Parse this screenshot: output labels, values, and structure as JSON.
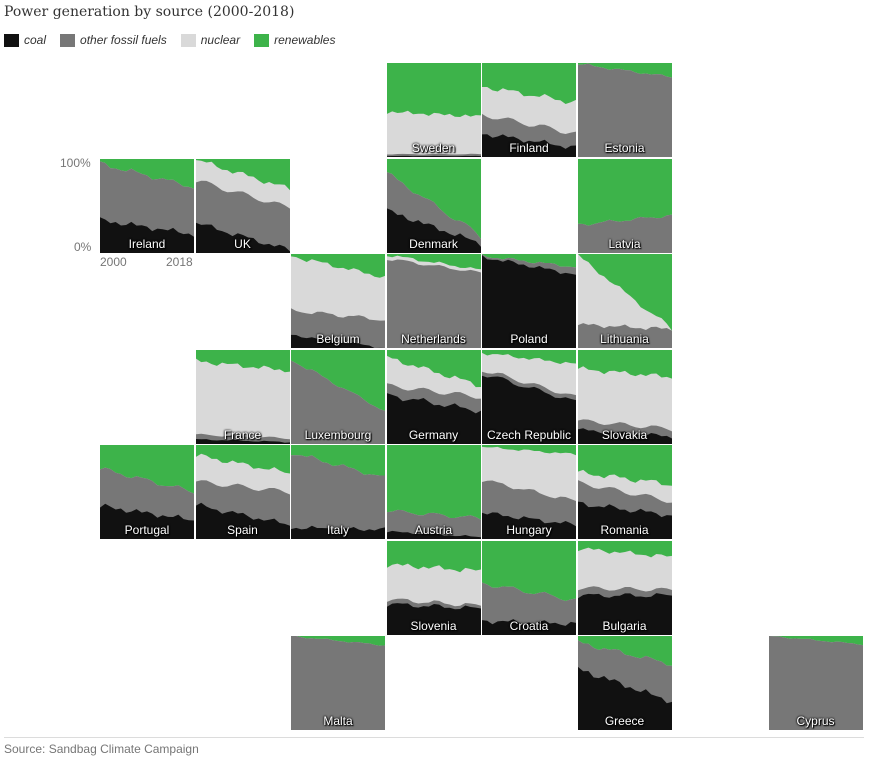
{
  "title": "Power generation by source (2000-2018)",
  "source": "Source: Sandbag Climate Campaign",
  "legend": [
    {
      "key": "coal",
      "label": "coal",
      "color": "#111111"
    },
    {
      "key": "other",
      "label": "other fossil fuels",
      "color": "#777777"
    },
    {
      "key": "nuclear",
      "label": "nuclear",
      "color": "#d9d9d9"
    },
    {
      "key": "renewables",
      "label": "renewables",
      "color": "#3db34a"
    }
  ],
  "axis": {
    "y_top": "100%",
    "y_bottom": "0%",
    "x_start": "2000",
    "x_end": "2018"
  },
  "chart_data": {
    "type": "area",
    "stacked": true,
    "layout": "tile grid map",
    "x": [
      2000,
      2018
    ],
    "ylim": [
      0,
      100
    ],
    "unit": "% of power generation",
    "series_order": [
      "coal",
      "other fossil fuels",
      "nuclear",
      "renewables"
    ],
    "countries": [
      {
        "name": "Sweden",
        "col": 3,
        "row": 0,
        "coal": [
          1,
          1
        ],
        "other": [
          2,
          2
        ],
        "nuclear": [
          45,
          40
        ],
        "renewables": [
          52,
          57
        ]
      },
      {
        "name": "Finland",
        "col": 4,
        "row": 0,
        "coal": [
          25,
          10
        ],
        "other": [
          20,
          15
        ],
        "nuclear": [
          30,
          33
        ],
        "renewables": [
          25,
          42
        ]
      },
      {
        "name": "Estonia",
        "col": 5,
        "row": 0,
        "coal": [
          0,
          0
        ],
        "other": [
          99,
          85
        ],
        "nuclear": [
          0,
          0
        ],
        "renewables": [
          1,
          15
        ]
      },
      {
        "name": "Ireland",
        "col": 0,
        "row": 1,
        "coal": [
          35,
          20
        ],
        "other": [
          60,
          50
        ],
        "nuclear": [
          0,
          0
        ],
        "renewables": [
          5,
          30
        ]
      },
      {
        "name": "UK",
        "col": 1,
        "row": 1,
        "coal": [
          32,
          3
        ],
        "other": [
          45,
          45
        ],
        "nuclear": [
          22,
          20
        ],
        "renewables": [
          1,
          32
        ]
      },
      {
        "name": "Denmark",
        "col": 3,
        "row": 1,
        "coal": [
          45,
          10
        ],
        "other": [
          40,
          8
        ],
        "nuclear": [
          0,
          0
        ],
        "renewables": [
          15,
          82
        ]
      },
      {
        "name": "Latvia",
        "col": 5,
        "row": 1,
        "coal": [
          0,
          0
        ],
        "other": [
          30,
          40
        ],
        "nuclear": [
          0,
          0
        ],
        "renewables": [
          70,
          60
        ]
      },
      {
        "name": "Belgium",
        "col": 2,
        "row": 2,
        "coal": [
          14,
          0
        ],
        "other": [
          26,
          30
        ],
        "nuclear": [
          58,
          45
        ],
        "renewables": [
          2,
          25
        ]
      },
      {
        "name": "Netherlands",
        "col": 3,
        "row": 2,
        "coal": [
          0,
          0
        ],
        "other": [
          95,
          80
        ],
        "nuclear": [
          4,
          3
        ],
        "renewables": [
          1,
          17
        ]
      },
      {
        "name": "Poland",
        "col": 4,
        "row": 2,
        "coal": [
          97,
          78
        ],
        "other": [
          1,
          8
        ],
        "nuclear": [
          0,
          0
        ],
        "renewables": [
          2,
          14
        ]
      },
      {
        "name": "Lithuania",
        "col": 5,
        "row": 2,
        "coal": [
          0,
          0
        ],
        "other": [
          25,
          20
        ],
        "nuclear": [
          73,
          0
        ],
        "renewables": [
          2,
          80
        ]
      },
      {
        "name": "France",
        "col": 1,
        "row": 3,
        "coal": [
          5,
          2
        ],
        "other": [
          5,
          4
        ],
        "nuclear": [
          78,
          72
        ],
        "renewables": [
          12,
          22
        ]
      },
      {
        "name": "Luxembourg",
        "col": 2,
        "row": 3,
        "coal": [
          0,
          0
        ],
        "other": [
          90,
          35
        ],
        "nuclear": [
          0,
          0
        ],
        "renewables": [
          10,
          65
        ]
      },
      {
        "name": "Germany",
        "col": 3,
        "row": 3,
        "coal": [
          52,
          35
        ],
        "other": [
          10,
          15
        ],
        "nuclear": [
          30,
          12
        ],
        "renewables": [
          8,
          38
        ]
      },
      {
        "name": "Czech Republic",
        "col": 4,
        "row": 3,
        "coal": [
          75,
          45
        ],
        "other": [
          4,
          5
        ],
        "nuclear": [
          18,
          35
        ],
        "renewables": [
          3,
          15
        ]
      },
      {
        "name": "Slovakia",
        "col": 5,
        "row": 3,
        "coal": [
          15,
          8
        ],
        "other": [
          10,
          8
        ],
        "nuclear": [
          55,
          55
        ],
        "renewables": [
          20,
          29
        ]
      },
      {
        "name": "Portugal",
        "col": 0,
        "row": 4,
        "coal": [
          35,
          20
        ],
        "other": [
          40,
          30
        ],
        "nuclear": [
          0,
          0
        ],
        "renewables": [
          25,
          50
        ]
      },
      {
        "name": "Spain",
        "col": 1,
        "row": 4,
        "coal": [
          36,
          15
        ],
        "other": [
          25,
          35
        ],
        "nuclear": [
          28,
          20
        ],
        "renewables": [
          11,
          30
        ]
      },
      {
        "name": "Italy",
        "col": 2,
        "row": 4,
        "coal": [
          12,
          10
        ],
        "other": [
          80,
          55
        ],
        "nuclear": [
          0,
          0
        ],
        "renewables": [
          8,
          35
        ]
      },
      {
        "name": "Austria",
        "col": 3,
        "row": 4,
        "coal": [
          8,
          2
        ],
        "other": [
          22,
          20
        ],
        "nuclear": [
          0,
          0
        ],
        "renewables": [
          70,
          78
        ]
      },
      {
        "name": "Hungary",
        "col": 4,
        "row": 4,
        "coal": [
          28,
          15
        ],
        "other": [
          35,
          25
        ],
        "nuclear": [
          35,
          50
        ],
        "renewables": [
          2,
          10
        ]
      },
      {
        "name": "Romania",
        "col": 5,
        "row": 4,
        "coal": [
          38,
          25
        ],
        "other": [
          22,
          15
        ],
        "nuclear": [
          11,
          18
        ],
        "renewables": [
          29,
          42
        ]
      },
      {
        "name": "Slovenia",
        "col": 3,
        "row": 5,
        "coal": [
          33,
          28
        ],
        "other": [
          5,
          3
        ],
        "nuclear": [
          37,
          37
        ],
        "renewables": [
          25,
          32
        ]
      },
      {
        "name": "Croatia",
        "col": 4,
        "row": 5,
        "coal": [
          15,
          12
        ],
        "other": [
          40,
          25
        ],
        "nuclear": [
          0,
          0
        ],
        "renewables": [
          45,
          63
        ]
      },
      {
        "name": "Bulgaria",
        "col": 5,
        "row": 5,
        "coal": [
          42,
          42
        ],
        "other": [
          8,
          6
        ],
        "nuclear": [
          42,
          35
        ],
        "renewables": [
          8,
          17
        ]
      },
      {
        "name": "Malta",
        "col": 2,
        "row": 6,
        "coal": [
          0,
          0
        ],
        "other": [
          100,
          90
        ],
        "nuclear": [
          0,
          0
        ],
        "renewables": [
          0,
          10
        ]
      },
      {
        "name": "Greece",
        "col": 5,
        "row": 6,
        "coal": [
          65,
          30
        ],
        "other": [
          28,
          40
        ],
        "nuclear": [
          0,
          0
        ],
        "renewables": [
          7,
          30
        ]
      },
      {
        "name": "Cyprus",
        "col": 7,
        "row": 6,
        "coal": [
          0,
          0
        ],
        "other": [
          100,
          91
        ],
        "nuclear": [
          0,
          0
        ],
        "renewables": [
          0,
          9
        ]
      }
    ]
  }
}
